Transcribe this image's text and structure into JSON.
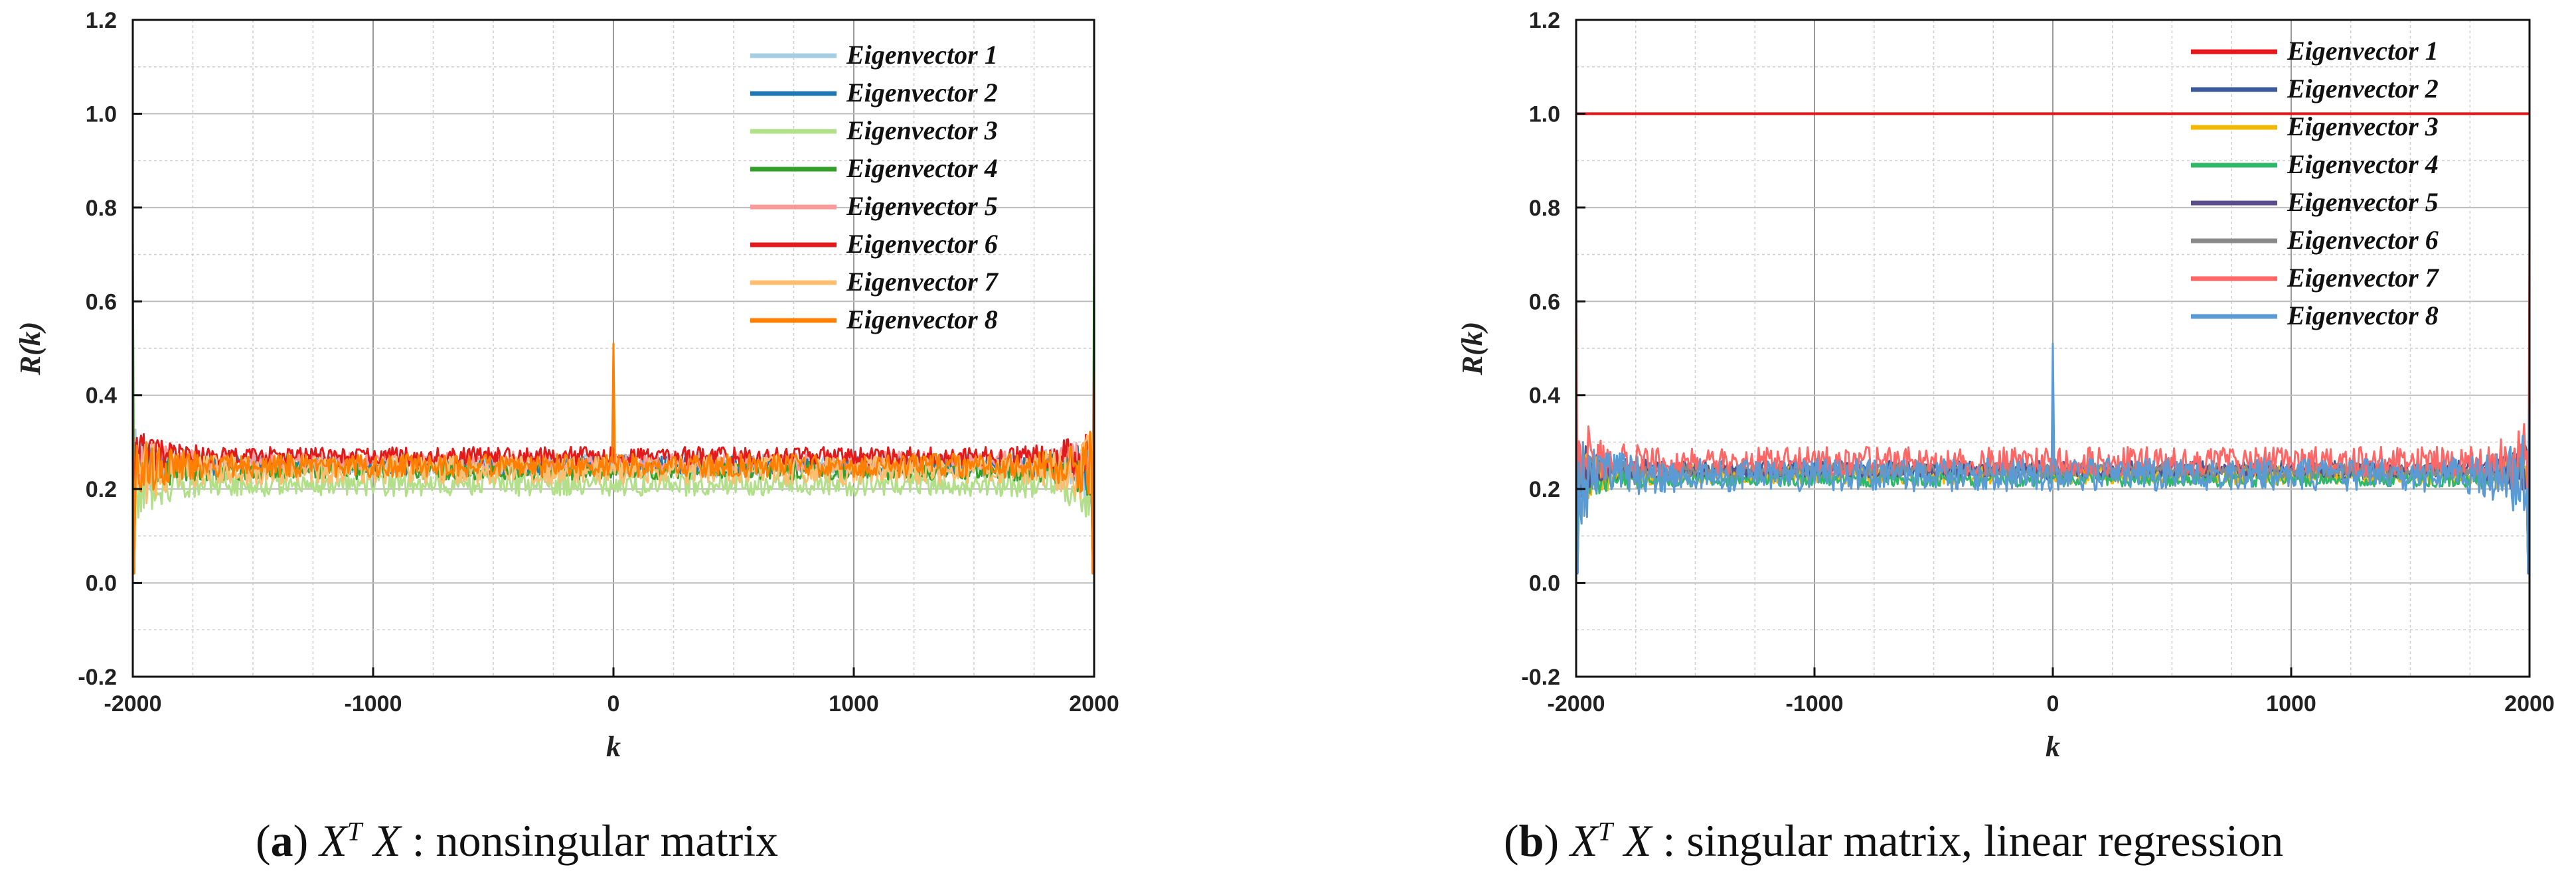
{
  "chart_data": [
    {
      "id": "a",
      "type": "line",
      "xlabel": "k",
      "ylabel": "R(k)",
      "xlim": [
        -2000,
        2000
      ],
      "ylim": [
        -0.2,
        1.2
      ],
      "x_ticks": [
        -2000,
        -1000,
        0,
        1000,
        2000
      ],
      "x_tick_labels": [
        "-2000",
        "-1000",
        "0",
        "1000",
        "2000"
      ],
      "y_ticks": [
        -0.2,
        0.0,
        0.2,
        0.4,
        0.6,
        0.8,
        1.0,
        1.2
      ],
      "y_tick_labels": [
        "-0.2",
        "0.0",
        "0.2",
        "0.4",
        "0.6",
        "0.8",
        "1.0",
        "1.2"
      ],
      "grid": true,
      "legend_position": "top-right",
      "series": [
        {
          "name": "Eigenvector 1",
          "color": "#a6cee3",
          "center": 0.25,
          "noise": 0.025,
          "edge_peak": 0.45
        },
        {
          "name": "Eigenvector 2",
          "color": "#1f78b4",
          "center": 0.25,
          "noise": 0.02,
          "edge_peak": 0.42
        },
        {
          "name": "Eigenvector 3",
          "color": "#b2df8a",
          "center": 0.21,
          "noise": 0.025,
          "edge_peak": 0.4
        },
        {
          "name": "Eigenvector 4",
          "color": "#33a02c",
          "center": 0.24,
          "noise": 0.02,
          "edge_peak": 0.75
        },
        {
          "name": "Eigenvector 5",
          "color": "#fb9a99",
          "center": 0.26,
          "noise": 0.02,
          "edge_peak": 0.42
        },
        {
          "name": "Eigenvector 6",
          "color": "#e31a1c",
          "center": 0.27,
          "noise": 0.02,
          "edge_peak": 0.45
        },
        {
          "name": "Eigenvector 7",
          "color": "#fdbf6f",
          "center": 0.24,
          "noise": 0.03,
          "edge_peak": 0.4
        },
        {
          "name": "Eigenvector 8",
          "color": "#ff7f00",
          "center": 0.25,
          "noise": 0.025,
          "edge_peak": 0.45,
          "spike_at_zero": 0.51
        }
      ]
    },
    {
      "id": "b",
      "type": "line",
      "xlabel": "k",
      "ylabel": "R(k)",
      "xlim": [
        -2000,
        2000
      ],
      "ylim": [
        -0.2,
        1.2
      ],
      "x_ticks": [
        -2000,
        -1000,
        0,
        1000,
        2000
      ],
      "x_tick_labels": [
        "-2000",
        "-1000",
        "0",
        "1000",
        "2000"
      ],
      "y_ticks": [
        -0.2,
        0.0,
        0.2,
        0.4,
        0.6,
        0.8,
        1.0,
        1.2
      ],
      "y_tick_labels": [
        "-0.2",
        "0.0",
        "0.2",
        "0.4",
        "0.6",
        "0.8",
        "1.0",
        "1.2"
      ],
      "grid": true,
      "legend_position": "top-right",
      "series": [
        {
          "name": "Eigenvector 1",
          "color": "#e8151b",
          "constant": 1.0
        },
        {
          "name": "Eigenvector 2",
          "color": "#3c5a99",
          "center": 0.24,
          "noise": 0.02,
          "edge_peak": 0.35
        },
        {
          "name": "Eigenvector 3",
          "color": "#f5b800",
          "center": 0.23,
          "noise": 0.02,
          "edge_peak": 0.48
        },
        {
          "name": "Eigenvector 4",
          "color": "#2fb86a",
          "center": 0.22,
          "noise": 0.015,
          "edge_peak": 0.35
        },
        {
          "name": "Eigenvector 5",
          "color": "#5b4d8c",
          "center": 0.24,
          "noise": 0.015,
          "edge_peak": 0.35
        },
        {
          "name": "Eigenvector 6",
          "color": "#8a8a8a",
          "center": 0.24,
          "noise": 0.015,
          "edge_peak": 0.35
        },
        {
          "name": "Eigenvector 7",
          "color": "#ff6666",
          "center": 0.26,
          "noise": 0.03,
          "edge_peak": 0.75
        },
        {
          "name": "Eigenvector 8",
          "color": "#5b9bd5",
          "center": 0.23,
          "noise": 0.035,
          "edge_peak": 0.4,
          "spike_at_zero": 0.51
        }
      ]
    }
  ],
  "captions": [
    {
      "tag": "a",
      "math": "X",
      "sup": "T",
      "math2": "X",
      "text": " : nonsingular matrix"
    },
    {
      "tag": "b",
      "math": "X",
      "sup": "T",
      "math2": "X",
      "text": " : singular matrix, linear regression"
    }
  ]
}
